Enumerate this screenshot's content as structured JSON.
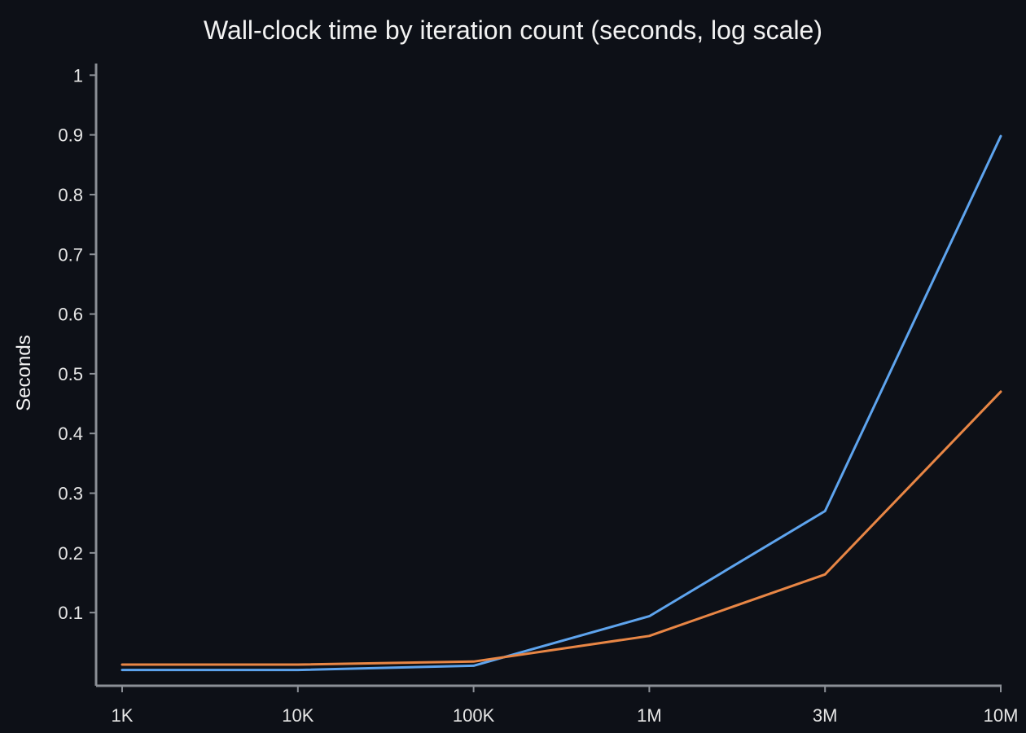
{
  "chart_data": {
    "type": "line",
    "title": "Wall-clock time by iteration count (seconds, log scale)",
    "xlabel": "",
    "ylabel": "Seconds",
    "x": [
      "1K",
      "10K",
      "100K",
      "1M",
      "3M",
      "10M"
    ],
    "x_tick_labels": [
      "1K",
      "10K",
      "100K",
      "1M",
      "3M",
      "10M"
    ],
    "y_ticks": [
      0.1,
      0.2,
      0.3,
      0.4,
      0.5,
      0.6,
      0.7,
      0.8,
      0.9,
      1
    ],
    "y_tick_labels": [
      "0.1",
      "0.2",
      "0.3",
      "0.4",
      "0.5",
      "0.6",
      "0.7",
      "0.8",
      "0.9",
      "1"
    ],
    "ylim": [
      0,
      1
    ],
    "grid": false,
    "legend": "none",
    "series": [
      {
        "color": "#5ea4ee",
        "values": [
          0.004,
          0.004,
          0.011,
          0.094,
          0.27,
          0.898
        ]
      },
      {
        "color": "#e88645",
        "values": [
          0.013,
          0.013,
          0.018,
          0.061,
          0.164,
          0.47
        ]
      }
    ]
  }
}
